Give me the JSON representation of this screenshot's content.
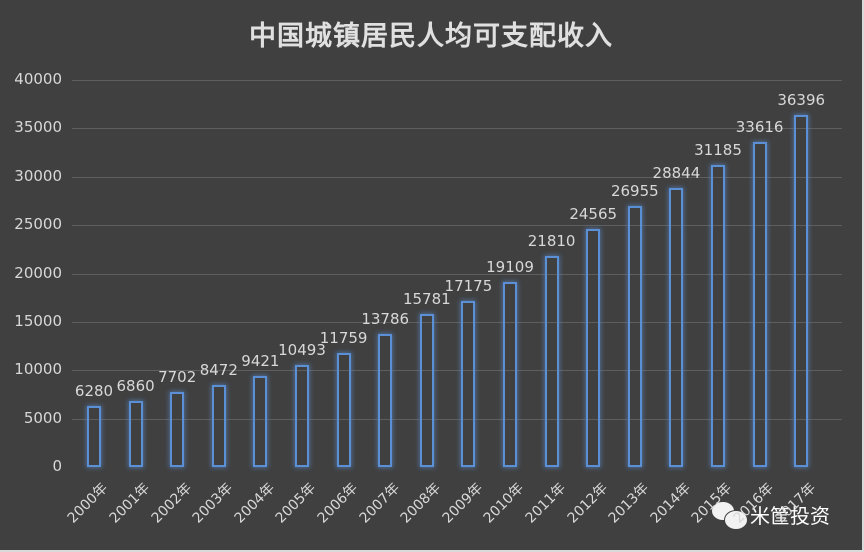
{
  "chart_data": {
    "type": "bar",
    "title": "中国城镇居民人均可支配收入",
    "xlabel": "",
    "ylabel": "",
    "ylim": [
      0,
      40000
    ],
    "yticks": [
      0,
      5000,
      10000,
      15000,
      20000,
      25000,
      30000,
      35000,
      40000
    ],
    "grid": true,
    "legend": null,
    "categories": [
      "2000年",
      "2001年",
      "2002年",
      "2003年",
      "2004年",
      "2005年",
      "2006年",
      "2007年",
      "2008年",
      "2009年",
      "2010年",
      "2011年",
      "2012年",
      "2013年",
      "2014年",
      "2015年",
      "2016年",
      "2017年"
    ],
    "values": [
      6280,
      6860,
      7702,
      8472,
      9421,
      10493,
      11759,
      13786,
      15781,
      17175,
      19109,
      21810,
      24565,
      26955,
      28844,
      31185,
      33616,
      36396
    ],
    "data_labels": true,
    "colors": {
      "background": "#404040",
      "bar_outline": "#5b8fd6",
      "gridline": "#5e5e5e",
      "text": "#d8d8d8"
    }
  },
  "watermark": {
    "text": "米筐投资",
    "icon": "wechat-icon"
  }
}
